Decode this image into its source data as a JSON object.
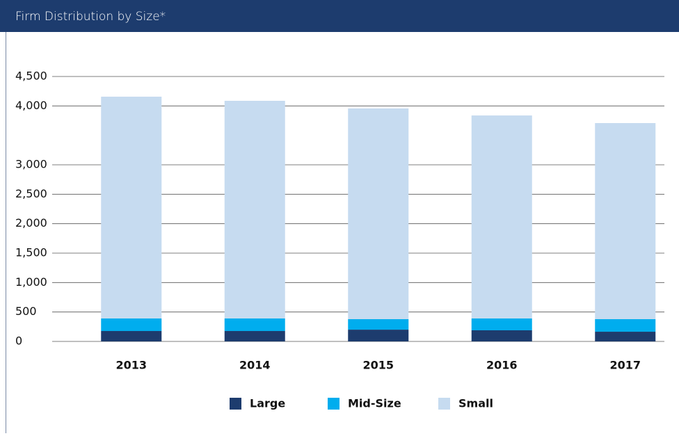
{
  "chart_data": {
    "type": "stacked_bar",
    "title": "Firm Distribution by Size*",
    "categories": [
      "2013",
      "2014",
      "2015",
      "2016",
      "2017"
    ],
    "series": [
      {
        "name": "Large",
        "color": "#1d3c6e",
        "values": [
          177,
          177,
          200,
          189,
          165
        ]
      },
      {
        "name": "Mid-Size",
        "color": "#00adee",
        "values": [
          213,
          213,
          178,
          201,
          213
        ]
      },
      {
        "name": "Small",
        "color": "#c6dbf0",
        "values": [
          3767,
          3697,
          3579,
          3448,
          3331
        ]
      }
    ],
    "ylim": [
      0,
      4500
    ],
    "yticks": [
      0,
      500,
      {
        "value": 1000,
        "label": "1,000"
      },
      {
        "value": 1500,
        "label": "1,500"
      },
      {
        "value": 2000,
        "label": "2,000"
      },
      {
        "value": 2500,
        "label": "2,500"
      },
      {
        "value": 3000,
        "label": "3,000"
      },
      {
        "value": 4000,
        "label": "4,000"
      },
      {
        "value": 4500,
        "label": "4,500"
      }
    ],
    "grid": true,
    "legend": "bottom"
  }
}
